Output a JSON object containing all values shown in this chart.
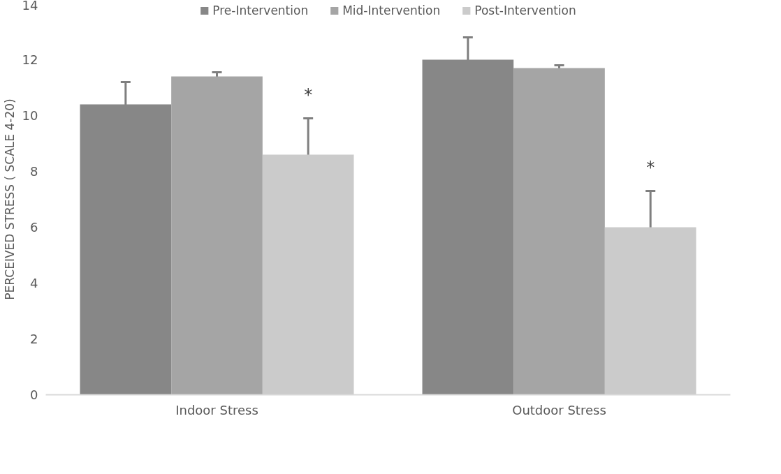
{
  "chart_data": {
    "type": "bar",
    "ylabel": "PERCEIVED STRESS ( SCALE 4-20)",
    "categories": [
      "Indoor Stress",
      "Outdoor Stress"
    ],
    "series": [
      {
        "name": "Pre-Intervention",
        "color": "#878787",
        "values": [
          10.4,
          12.0
        ],
        "errors": [
          0.8,
          0.8
        ]
      },
      {
        "name": "Mid-Intervention",
        "color": "#a5a5a5",
        "values": [
          11.4,
          11.7
        ],
        "errors": [
          0.15,
          0.1
        ]
      },
      {
        "name": "Post-Intervention",
        "color": "#cbcbcb",
        "values": [
          8.6,
          6.0
        ],
        "errors": [
          1.3,
          1.3
        ]
      }
    ],
    "ylim": [
      0,
      14
    ],
    "yticks": [
      0,
      2,
      4,
      6,
      8,
      10,
      12,
      14
    ],
    "grid": false,
    "legend": "top",
    "annotations": [
      "*",
      "*"
    ]
  }
}
